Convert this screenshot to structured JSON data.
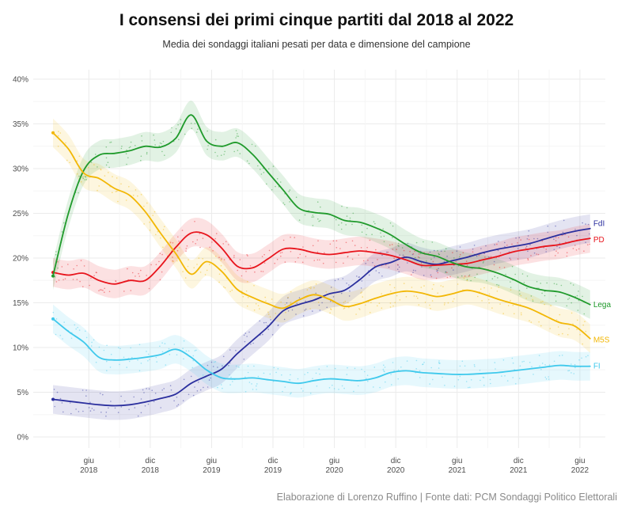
{
  "chart_data": {
    "type": "line",
    "title": "I consensi dei primi cinque partiti dal 2018 al 2022",
    "subtitle": "Media dei sondaggi italiani pesati per data e dimensione del campione",
    "caption": "Elaborazione di Lorenzo Ruffino | Fonte dati: PCM Sondaggi Politico Elettorali",
    "xlabel": "",
    "ylabel": "",
    "ylim": [
      0,
      40
    ],
    "y_ticks": [
      "0%",
      "5%",
      "10%",
      "15%",
      "20%",
      "25%",
      "30%",
      "35%",
      "40%"
    ],
    "x_ticks": [
      {
        "month": "giu",
        "year": "2018"
      },
      {
        "month": "dic",
        "year": "2018"
      },
      {
        "month": "giu",
        "year": "2019"
      },
      {
        "month": "dic",
        "year": "2019"
      },
      {
        "month": "giu",
        "year": "2020"
      },
      {
        "month": "dic",
        "year": "2020"
      },
      {
        "month": "giu",
        "year": "2021"
      },
      {
        "month": "dic",
        "year": "2021"
      },
      {
        "month": "giu",
        "year": "2022"
      }
    ],
    "x_units": "months since Jan 2018",
    "x_tick_values": [
      5,
      11,
      17,
      23,
      29,
      35,
      41,
      47,
      53
    ],
    "xlim": [
      0,
      57
    ],
    "x": [
      1.5,
      3,
      4.5,
      6,
      7.5,
      9,
      10.5,
      12,
      13.5,
      15,
      16.5,
      18,
      19.5,
      21,
      22.5,
      24,
      25.5,
      27,
      28.5,
      30,
      31.5,
      33,
      34.5,
      36,
      37.5,
      39,
      40.5,
      42,
      43.5,
      45,
      46.5,
      48,
      49.5,
      51,
      52.5,
      54
    ],
    "series": [
      {
        "name": "FdI",
        "color": "#2b2f9e",
        "values": [
          4.2,
          4.0,
          3.8,
          3.6,
          3.5,
          3.6,
          3.9,
          4.3,
          4.8,
          6.0,
          6.8,
          7.6,
          9.3,
          10.8,
          12.3,
          14.1,
          14.8,
          15.3,
          16.0,
          16.4,
          17.6,
          19.0,
          19.5,
          20.1,
          19.6,
          19.3,
          19.7,
          20.1,
          20.6,
          21.0,
          21.3,
          21.6,
          22.1,
          22.6,
          23.0,
          23.3
        ]
      },
      {
        "name": "PD",
        "color": "#e8141c",
        "values": [
          18.4,
          18.1,
          18.3,
          17.5,
          17.1,
          17.5,
          17.5,
          19.1,
          21.2,
          22.8,
          22.6,
          21.1,
          19.1,
          18.9,
          19.9,
          21.0,
          21.0,
          20.6,
          20.4,
          20.6,
          20.8,
          20.6,
          20.3,
          19.8,
          19.2,
          19.2,
          19.3,
          19.4,
          19.8,
          20.2,
          20.7,
          21.0,
          21.3,
          21.5,
          21.9,
          22.2
        ]
      },
      {
        "name": "Lega",
        "color": "#1f9a2b",
        "values": [
          18.0,
          25.0,
          29.8,
          31.5,
          31.7,
          32.0,
          32.5,
          32.4,
          33.4,
          36.0,
          33.1,
          32.5,
          32.9,
          31.6,
          29.6,
          27.6,
          25.6,
          25.1,
          24.9,
          24.2,
          24.0,
          23.4,
          22.6,
          21.5,
          20.6,
          20.2,
          19.5,
          19.0,
          18.8,
          18.3,
          17.6,
          16.8,
          16.4,
          16.2,
          15.6,
          14.8
        ]
      },
      {
        "name": "M5S",
        "color": "#f2b705",
        "values": [
          34.0,
          32.2,
          29.5,
          28.9,
          27.8,
          27.0,
          25.2,
          22.8,
          20.5,
          18.2,
          19.6,
          18.5,
          16.5,
          15.6,
          14.9,
          14.4,
          15.3,
          15.9,
          15.4,
          14.6,
          14.9,
          15.5,
          16.0,
          16.3,
          16.1,
          15.7,
          16.0,
          16.4,
          16.0,
          15.4,
          14.9,
          14.4,
          13.6,
          12.8,
          12.4,
          11.0
        ]
      },
      {
        "name": "FI",
        "color": "#3fc9ec",
        "values": [
          13.2,
          11.8,
          10.6,
          8.9,
          8.6,
          8.7,
          8.9,
          9.2,
          9.8,
          8.9,
          7.5,
          6.6,
          6.5,
          6.6,
          6.4,
          6.2,
          6.0,
          6.3,
          6.5,
          6.4,
          6.3,
          6.6,
          7.2,
          7.4,
          7.2,
          7.1,
          7.0,
          7.0,
          7.1,
          7.2,
          7.4,
          7.6,
          7.8,
          8.0,
          7.9,
          7.9
        ]
      }
    ]
  }
}
